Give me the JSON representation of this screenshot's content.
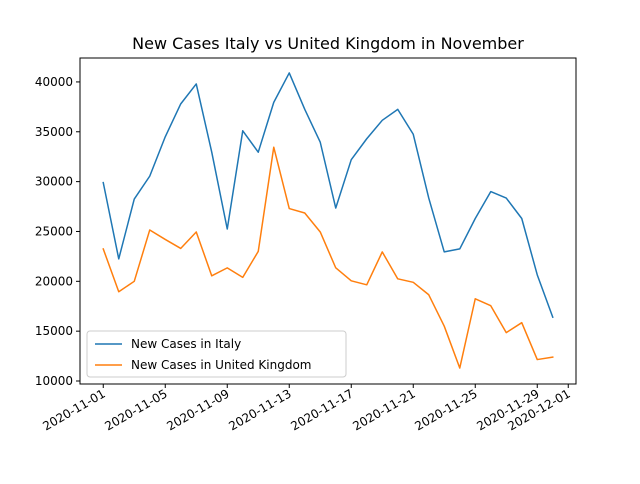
{
  "chart_data": {
    "type": "line",
    "title": "New Cases Italy vs United Kingdom in November",
    "xlabel": "",
    "ylabel": "",
    "x": [
      "2020-11-01",
      "2020-11-02",
      "2020-11-03",
      "2020-11-04",
      "2020-11-05",
      "2020-11-06",
      "2020-11-07",
      "2020-11-08",
      "2020-11-09",
      "2020-11-10",
      "2020-11-11",
      "2020-11-12",
      "2020-11-13",
      "2020-11-14",
      "2020-11-15",
      "2020-11-16",
      "2020-11-17",
      "2020-11-18",
      "2020-11-19",
      "2020-11-20",
      "2020-11-21",
      "2020-11-22",
      "2020-11-23",
      "2020-11-24",
      "2020-11-25",
      "2020-11-26",
      "2020-11-27",
      "2020-11-28",
      "2020-11-29",
      "2020-11-30"
    ],
    "xlim": [
      "2020-10-30T12:00",
      "2020-12-01T12:00"
    ],
    "ylim": [
      9700,
      42400
    ],
    "xticks": [
      "2020-11-01",
      "2020-11-05",
      "2020-11-09",
      "2020-11-13",
      "2020-11-17",
      "2020-11-21",
      "2020-11-25",
      "2020-11-29",
      "2020-12-01"
    ],
    "yticks": [
      10000,
      15000,
      20000,
      25000,
      30000,
      35000,
      40000
    ],
    "grid": false,
    "legend_position": "lower-left",
    "series": [
      {
        "name": "New Cases in Italy",
        "color": "#1f77b4",
        "values": [
          29900,
          22250,
          28250,
          30550,
          34500,
          37800,
          39800,
          32950,
          25250,
          35100,
          32950,
          37950,
          40900,
          37250,
          33950,
          27350,
          32200,
          34300,
          36150,
          37250,
          34750,
          28350,
          22950,
          23250,
          26300,
          29000,
          28350,
          26300,
          20650,
          16400
        ]
      },
      {
        "name": "New Cases in United Kingdom",
        "color": "#ff7f0e",
        "values": [
          23250,
          18950,
          20000,
          25150,
          24200,
          23300,
          24950,
          20550,
          21350,
          20400,
          23000,
          33450,
          27300,
          26850,
          24950,
          21350,
          20050,
          19650,
          22950,
          20250,
          19900,
          18650,
          15500,
          11300,
          18250,
          17550,
          14850,
          15850,
          12150,
          12400
        ]
      }
    ]
  }
}
